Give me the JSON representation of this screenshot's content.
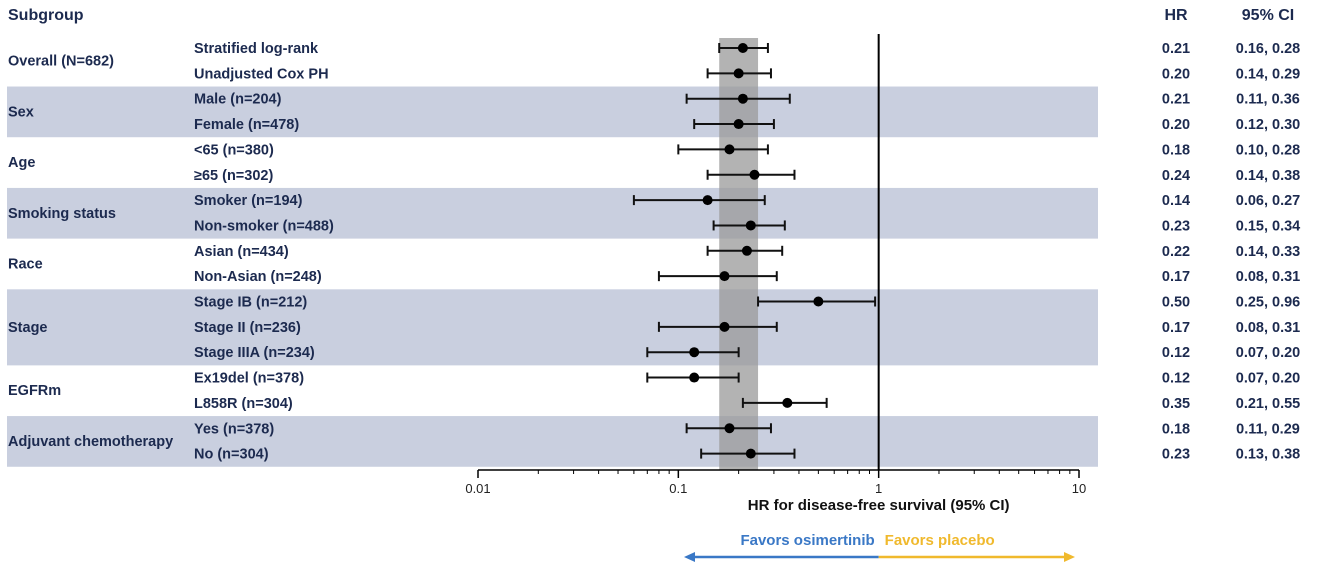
{
  "chart_data": {
    "type": "forest",
    "title": "",
    "headers": {
      "subgroup": "Subgroup",
      "hr": "HR",
      "ci": "95% CI"
    },
    "xlabel": "HR for disease-free survival (95% CI)",
    "xscale": "log",
    "xlim": [
      0.01,
      10
    ],
    "xticks": [
      {
        "value": 0.01,
        "label": "0.01"
      },
      {
        "value": 0.1,
        "label": "0.1"
      },
      {
        "value": 1,
        "label": "1"
      },
      {
        "value": 10,
        "label": "10"
      }
    ],
    "reference_line": 1,
    "overall_band": [
      0.16,
      0.25
    ],
    "favors_left": "Favors osimertinib",
    "favors_right": "Favors placebo",
    "colors": {
      "text": "#1c2a4f",
      "band": "#c9cfdf",
      "shade": "#999999",
      "left": "#3a78c6",
      "right": "#f0b92d"
    },
    "groups": [
      {
        "name": "Overall (N=682)",
        "shaded": false,
        "rows": [
          {
            "label": "Stratified log-rank",
            "hr": 0.21,
            "lo": 0.16,
            "hi": 0.28,
            "hr_text": "0.21",
            "ci_text": "0.16, 0.28"
          },
          {
            "label": "Unadjusted Cox PH",
            "hr": 0.2,
            "lo": 0.14,
            "hi": 0.29,
            "hr_text": "0.20",
            "ci_text": "0.14, 0.29"
          }
        ]
      },
      {
        "name": "Sex",
        "shaded": true,
        "rows": [
          {
            "label": "Male (n=204)",
            "hr": 0.21,
            "lo": 0.11,
            "hi": 0.36,
            "hr_text": "0.21",
            "ci_text": "0.11, 0.36"
          },
          {
            "label": "Female (n=478)",
            "hr": 0.2,
            "lo": 0.12,
            "hi": 0.3,
            "hr_text": "0.20",
            "ci_text": "0.12, 0.30"
          }
        ]
      },
      {
        "name": "Age",
        "shaded": false,
        "rows": [
          {
            "label": "<65 (n=380)",
            "hr": 0.18,
            "lo": 0.1,
            "hi": 0.28,
            "hr_text": "0.18",
            "ci_text": "0.10, 0.28"
          },
          {
            "label": "≥65 (n=302)",
            "hr": 0.24,
            "lo": 0.14,
            "hi": 0.38,
            "hr_text": "0.24",
            "ci_text": "0.14, 0.38"
          }
        ]
      },
      {
        "name": "Smoking status",
        "shaded": true,
        "rows": [
          {
            "label": "Smoker (n=194)",
            "hr": 0.14,
            "lo": 0.06,
            "hi": 0.27,
            "hr_text": "0.14",
            "ci_text": "0.06, 0.27"
          },
          {
            "label": "Non-smoker (n=488)",
            "hr": 0.23,
            "lo": 0.15,
            "hi": 0.34,
            "hr_text": "0.23",
            "ci_text": "0.15, 0.34"
          }
        ]
      },
      {
        "name": "Race",
        "shaded": false,
        "rows": [
          {
            "label": "Asian (n=434)",
            "hr": 0.22,
            "lo": 0.14,
            "hi": 0.33,
            "hr_text": "0.22",
            "ci_text": "0.14, 0.33"
          },
          {
            "label": "Non-Asian (n=248)",
            "hr": 0.17,
            "lo": 0.08,
            "hi": 0.31,
            "hr_text": "0.17",
            "ci_text": "0.08, 0.31"
          }
        ]
      },
      {
        "name": "Stage",
        "shaded": true,
        "rows": [
          {
            "label": "Stage IB (n=212)",
            "hr": 0.5,
            "lo": 0.25,
            "hi": 0.96,
            "hr_text": "0.50",
            "ci_text": "0.25, 0.96"
          },
          {
            "label": "Stage II (n=236)",
            "hr": 0.17,
            "lo": 0.08,
            "hi": 0.31,
            "hr_text": "0.17",
            "ci_text": "0.08, 0.31"
          },
          {
            "label": "Stage IIIA (n=234)",
            "hr": 0.12,
            "lo": 0.07,
            "hi": 0.2,
            "hr_text": "0.12",
            "ci_text": "0.07, 0.20"
          }
        ]
      },
      {
        "name": "EGFRm",
        "shaded": false,
        "rows": [
          {
            "label": "Ex19del (n=378)",
            "hr": 0.12,
            "lo": 0.07,
            "hi": 0.2,
            "hr_text": "0.12",
            "ci_text": "0.07, 0.20"
          },
          {
            "label": "L858R (n=304)",
            "hr": 0.35,
            "lo": 0.21,
            "hi": 0.55,
            "hr_text": "0.35",
            "ci_text": "0.21, 0.55"
          }
        ]
      },
      {
        "name": "Adjuvant chemotherapy",
        "shaded": true,
        "rows": [
          {
            "label": "Yes (n=378)",
            "hr": 0.18,
            "lo": 0.11,
            "hi": 0.29,
            "hr_text": "0.18",
            "ci_text": "0.11, 0.29"
          },
          {
            "label": "No (n=304)",
            "hr": 0.23,
            "lo": 0.13,
            "hi": 0.38,
            "hr_text": "0.23",
            "ci_text": "0.13, 0.38"
          }
        ]
      }
    ]
  }
}
